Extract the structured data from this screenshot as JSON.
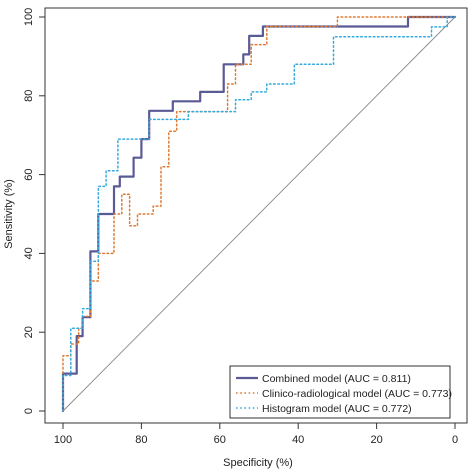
{
  "chart_data": {
    "type": "line",
    "title": "",
    "xlabel": "Specificity (%)",
    "ylabel": "Sensitivity (%)",
    "xlim": [
      100,
      0
    ],
    "ylim": [
      0,
      100
    ],
    "x_reversed": true,
    "x_ticks": [
      100,
      80,
      60,
      40,
      20,
      0
    ],
    "y_ticks": [
      0,
      20,
      40,
      60,
      80,
      100
    ],
    "grid": false,
    "diagonal_reference": true,
    "legend_position": "bottom-right",
    "series": [
      {
        "name": "Combined model (AUC = 0.811)",
        "color": "#5a5a96",
        "style": "solid",
        "points": [
          [
            100,
            0
          ],
          [
            100,
            9.5
          ],
          [
            96.5,
            9.5
          ],
          [
            96.5,
            19
          ],
          [
            95,
            19
          ],
          [
            95,
            23.8
          ],
          [
            93,
            23.8
          ],
          [
            93,
            40.5
          ],
          [
            91,
            40.5
          ],
          [
            91,
            50
          ],
          [
            87,
            50
          ],
          [
            87,
            57
          ],
          [
            85.5,
            57
          ],
          [
            85.5,
            59.5
          ],
          [
            82,
            59.5
          ],
          [
            82,
            64.3
          ],
          [
            80,
            64.3
          ],
          [
            80,
            69
          ],
          [
            78,
            69
          ],
          [
            78,
            76.2
          ],
          [
            72,
            76.2
          ],
          [
            72,
            78.6
          ],
          [
            65,
            78.6
          ],
          [
            65,
            81
          ],
          [
            59,
            81
          ],
          [
            59,
            88
          ],
          [
            54,
            88
          ],
          [
            54,
            90.5
          ],
          [
            52.5,
            90.5
          ],
          [
            52.5,
            95.2
          ],
          [
            49,
            95.2
          ],
          [
            49,
            97.6
          ],
          [
            12,
            97.6
          ],
          [
            12,
            100
          ],
          [
            0,
            100
          ]
        ]
      },
      {
        "name": "Clinico-radiological model (AUC = 0.773)",
        "color": "#e07a30",
        "style": "dotted",
        "points": [
          [
            100,
            0
          ],
          [
            100,
            14
          ],
          [
            98,
            14
          ],
          [
            98,
            17
          ],
          [
            96,
            17
          ],
          [
            96,
            21
          ],
          [
            95,
            21
          ],
          [
            95,
            24
          ],
          [
            93,
            24
          ],
          [
            93,
            33
          ],
          [
            91,
            33
          ],
          [
            91,
            40
          ],
          [
            87,
            40
          ],
          [
            87,
            50
          ],
          [
            85,
            50
          ],
          [
            85,
            55
          ],
          [
            83,
            55
          ],
          [
            83,
            47
          ],
          [
            81,
            47
          ],
          [
            81,
            50
          ],
          [
            77,
            50
          ],
          [
            77,
            52
          ],
          [
            75,
            52
          ],
          [
            75,
            62
          ],
          [
            73,
            62
          ],
          [
            73,
            71
          ],
          [
            71,
            71
          ],
          [
            71,
            76
          ],
          [
            64,
            76
          ],
          [
            64,
            76
          ],
          [
            58,
            76
          ],
          [
            58,
            83
          ],
          [
            56,
            83
          ],
          [
            56,
            88
          ],
          [
            52,
            88
          ],
          [
            52,
            93
          ],
          [
            48,
            93
          ],
          [
            48,
            97.6
          ],
          [
            30,
            97.6
          ],
          [
            30,
            100
          ],
          [
            0,
            100
          ]
        ]
      },
      {
        "name": "Histogram model (AUC = 0.772)",
        "color": "#33aadd",
        "style": "dotted",
        "points": [
          [
            100,
            0
          ],
          [
            100,
            9
          ],
          [
            98,
            9
          ],
          [
            98,
            21
          ],
          [
            95,
            21
          ],
          [
            95,
            26
          ],
          [
            93,
            26
          ],
          [
            93,
            38
          ],
          [
            91,
            38
          ],
          [
            91,
            57
          ],
          [
            89,
            57
          ],
          [
            89,
            61
          ],
          [
            86,
            61
          ],
          [
            86,
            69
          ],
          [
            78,
            69
          ],
          [
            78,
            74
          ],
          [
            68,
            74
          ],
          [
            68,
            76
          ],
          [
            56,
            76
          ],
          [
            56,
            79
          ],
          [
            52,
            79
          ],
          [
            52,
            81
          ],
          [
            48,
            81
          ],
          [
            48,
            83
          ],
          [
            41,
            83
          ],
          [
            41,
            88
          ],
          [
            31,
            88
          ],
          [
            31,
            95
          ],
          [
            6,
            95
          ],
          [
            6,
            97.5
          ],
          [
            2,
            97.5
          ],
          [
            2,
            100
          ],
          [
            0,
            100
          ]
        ]
      }
    ]
  }
}
